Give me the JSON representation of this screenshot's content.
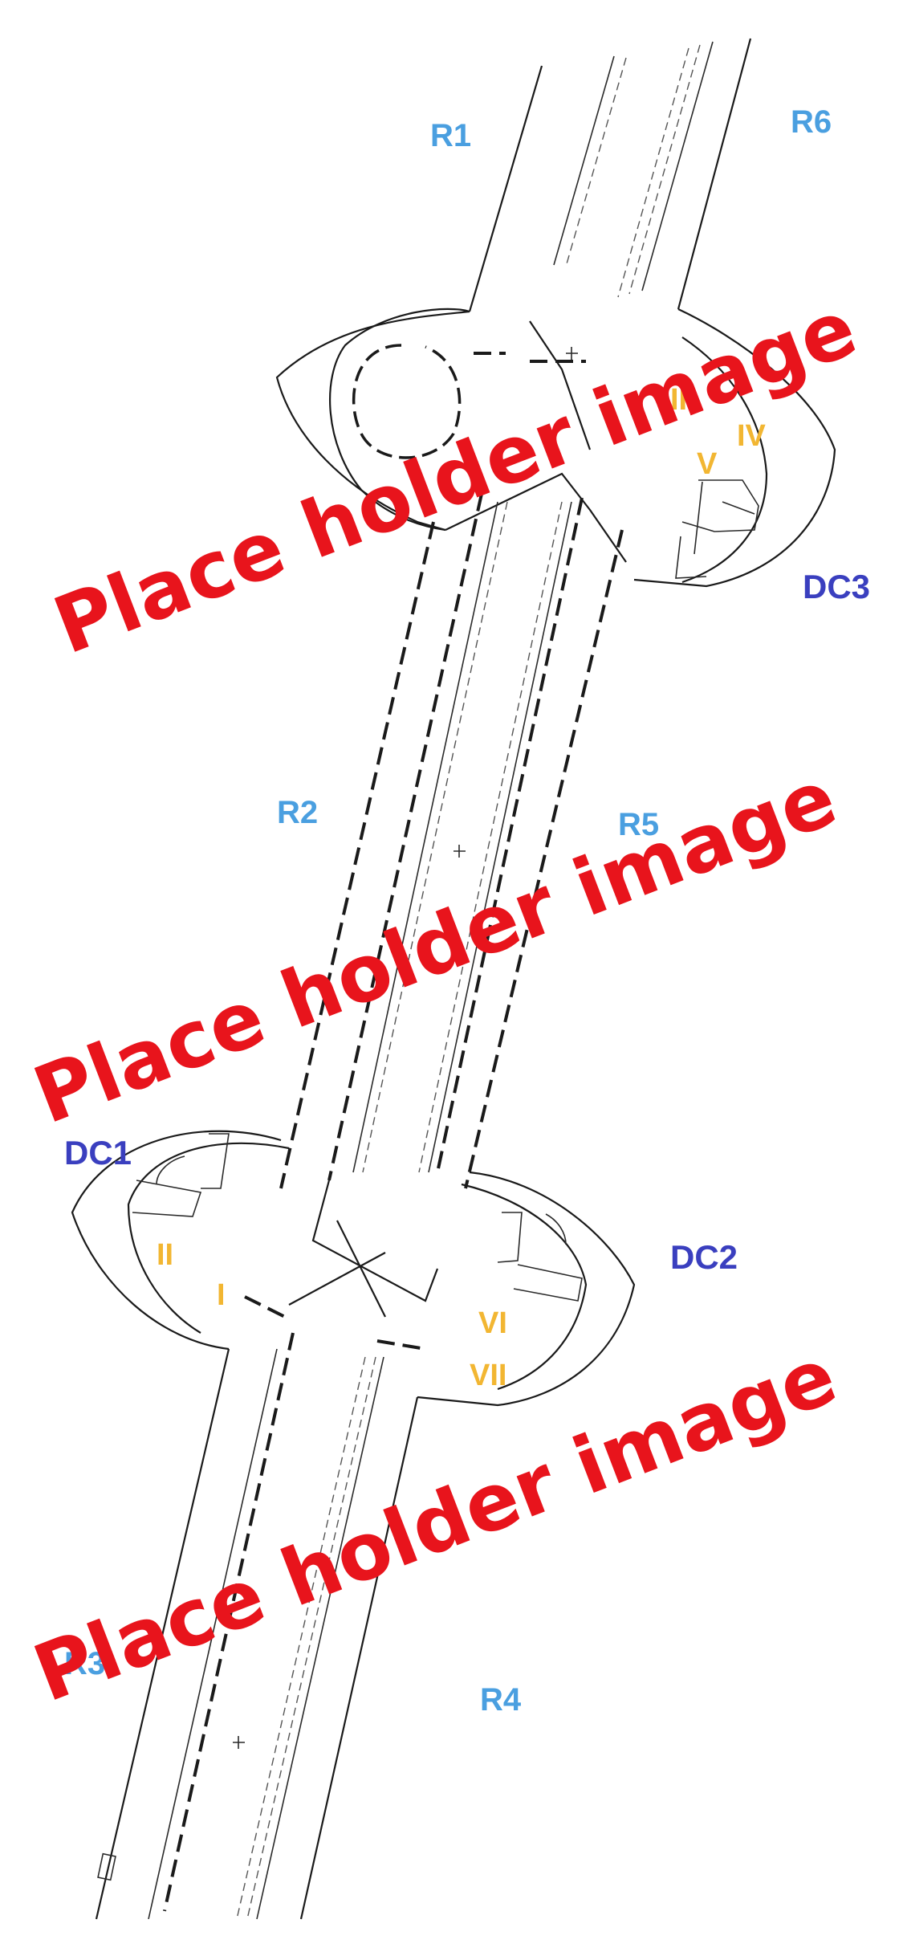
{
  "regions": {
    "r1": "R1",
    "r2": "R2",
    "r3": "R3",
    "r4": "R4",
    "r5": "R5",
    "r6": "R6"
  },
  "chambers": {
    "dc1": "DC1",
    "dc2": "DC2",
    "dc3": "DC3"
  },
  "points": {
    "i": "I",
    "ii": "II",
    "iii": "III",
    "iv": "IV",
    "v": "V",
    "vi": "VI",
    "vii": "VII"
  },
  "watermark": "Place holder image",
  "colors": {
    "region_label": "#4a9fe0",
    "chamber_label": "#3a3fbf",
    "point_label": "#f2b632",
    "watermark": "#e8141c",
    "line": "#1a1a1a"
  }
}
